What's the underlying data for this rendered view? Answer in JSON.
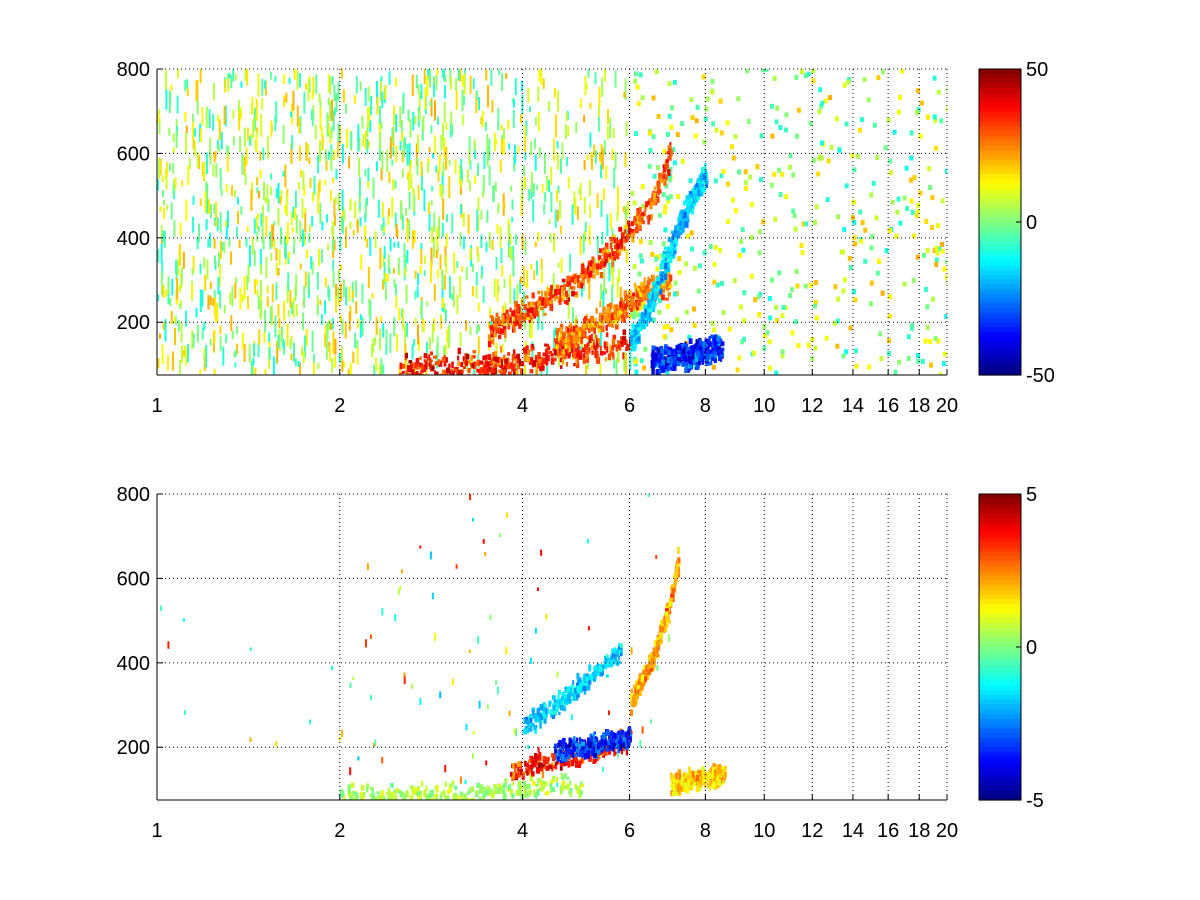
{
  "chart_data": [
    {
      "type": "heatmap",
      "title": "",
      "xlabel": "",
      "ylabel": "",
      "x_scale": "log",
      "xlim": [
        1,
        20
      ],
      "ylim": [
        75,
        800
      ],
      "grid": true,
      "x_ticks": [
        1,
        2,
        4,
        6,
        8,
        10,
        12,
        14,
        16,
        18,
        20
      ],
      "x_tick_labels": [
        "1",
        "2",
        "4",
        "6",
        "8",
        "10",
        "12",
        "14",
        "16",
        "18",
        "20"
      ],
      "y_ticks": [
        200,
        400,
        600,
        800
      ],
      "y_tick_labels": [
        "200",
        "400",
        "600",
        "800"
      ],
      "colorbar": {
        "min": -50,
        "max": 50,
        "ticks": [
          "50",
          "0",
          "-50"
        ],
        "colormap": "jet"
      },
      "features": [
        {
          "x": [
            2.5,
            3.5,
            4.5,
            5.5,
            6.0
          ],
          "y": [
            85,
            100,
            120,
            140,
            150
          ],
          "value": 40
        },
        {
          "x": [
            3.5,
            4.5,
            5.5,
            6.5,
            7.0
          ],
          "y": [
            180,
            260,
            360,
            480,
            600
          ],
          "value": 35
        },
        {
          "x": [
            4.5,
            5.5,
            6.2,
            7.0
          ],
          "y": [
            150,
            210,
            260,
            300
          ],
          "value": 30
        },
        {
          "x": [
            6.0,
            6.5,
            7.0,
            7.5,
            8.0
          ],
          "y": [
            150,
            250,
            380,
            480,
            550
          ],
          "value": -20
        },
        {
          "x": [
            6.5,
            7.5,
            8.5
          ],
          "y": [
            110,
            120,
            140
          ],
          "value": -40
        }
      ]
    },
    {
      "type": "heatmap",
      "title": "",
      "xlabel": "",
      "ylabel": "",
      "x_scale": "log",
      "xlim": [
        1,
        20
      ],
      "ylim": [
        75,
        800
      ],
      "grid": true,
      "x_ticks": [
        1,
        2,
        4,
        6,
        8,
        10,
        12,
        14,
        16,
        18,
        20
      ],
      "x_tick_labels": [
        "1",
        "2",
        "4",
        "6",
        "8",
        "10",
        "12",
        "14",
        "16",
        "18",
        "20"
      ],
      "y_ticks": [
        200,
        400,
        600,
        800
      ],
      "y_tick_labels": [
        "200",
        "400",
        "600",
        "800"
      ],
      "colorbar": {
        "min": -5,
        "max": 5,
        "ticks": [
          "5",
          "0",
          "-5"
        ],
        "colormap": "jet"
      },
      "features": [
        {
          "x": [
            2.0,
            3.0,
            4.0,
            5.0
          ],
          "y": [
            85,
            90,
            100,
            110
          ],
          "value": 0.5
        },
        {
          "x": [
            3.8,
            4.5,
            5.5,
            6.0
          ],
          "y": [
            140,
            170,
            200,
            220
          ],
          "value": 4
        },
        {
          "x": [
            4.5,
            5.5,
            6.0
          ],
          "y": [
            190,
            210,
            220
          ],
          "value": -4
        },
        {
          "x": [
            6.0,
            6.5,
            7.0,
            7.2
          ],
          "y": [
            300,
            400,
            550,
            650
          ],
          "value": 2.5
        },
        {
          "x": [
            4.0,
            5.0,
            5.8
          ],
          "y": [
            250,
            350,
            430
          ],
          "value": -2
        },
        {
          "x": [
            7.0,
            7.8,
            8.6
          ],
          "y": [
            110,
            125,
            135
          ],
          "value": 2
        }
      ]
    }
  ]
}
